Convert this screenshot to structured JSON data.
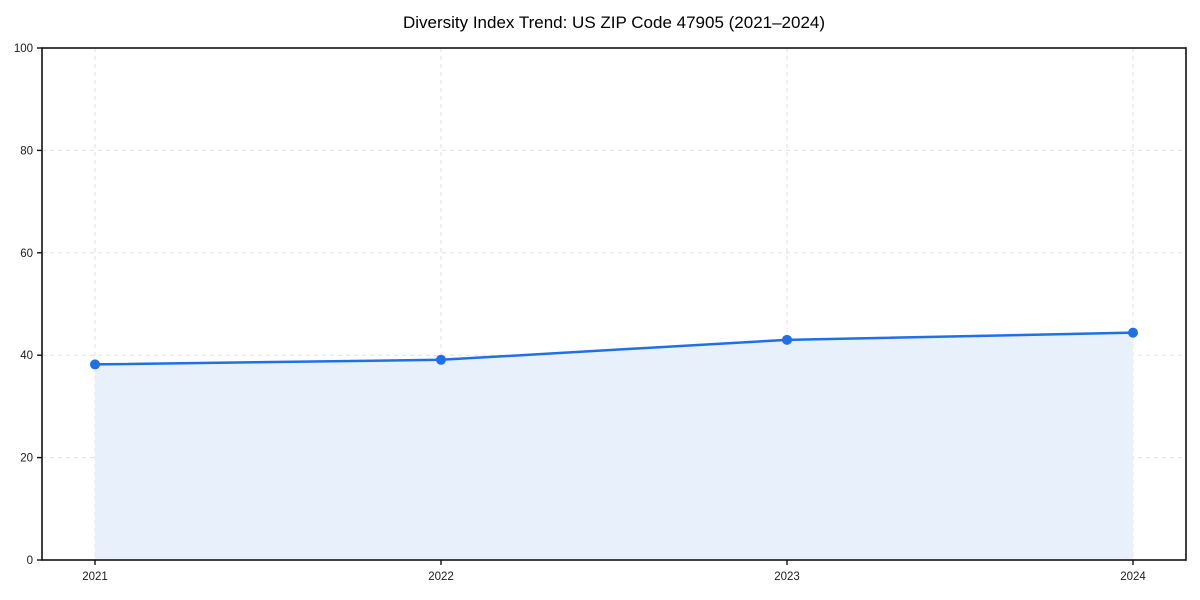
{
  "chart_data": {
    "type": "line",
    "title": "Diversity Index Trend: US ZIP Code 47905 (2021–2024)",
    "x": [
      "2021",
      "2022",
      "2023",
      "2024"
    ],
    "series": [
      {
        "name": "Diversity Index",
        "values": [
          38.2,
          39.1,
          43.0,
          44.4
        ]
      }
    ],
    "xlabel": "",
    "ylabel": "",
    "ylim": [
      0,
      100
    ],
    "yticks": [
      0,
      20,
      40,
      60,
      80,
      100
    ],
    "grid": true,
    "grid_style": "dashed",
    "legend": "none",
    "area_fill": true,
    "marker": "circle",
    "colors": {
      "line": "#1f6fe8",
      "marker": "#1f6fe8",
      "area": "#e8f0fc",
      "grid": "#e2e2e2",
      "spine": "#111111",
      "tick_text": "#1a1a1a",
      "title_text": "#000000",
      "background": "#ffffff"
    }
  }
}
